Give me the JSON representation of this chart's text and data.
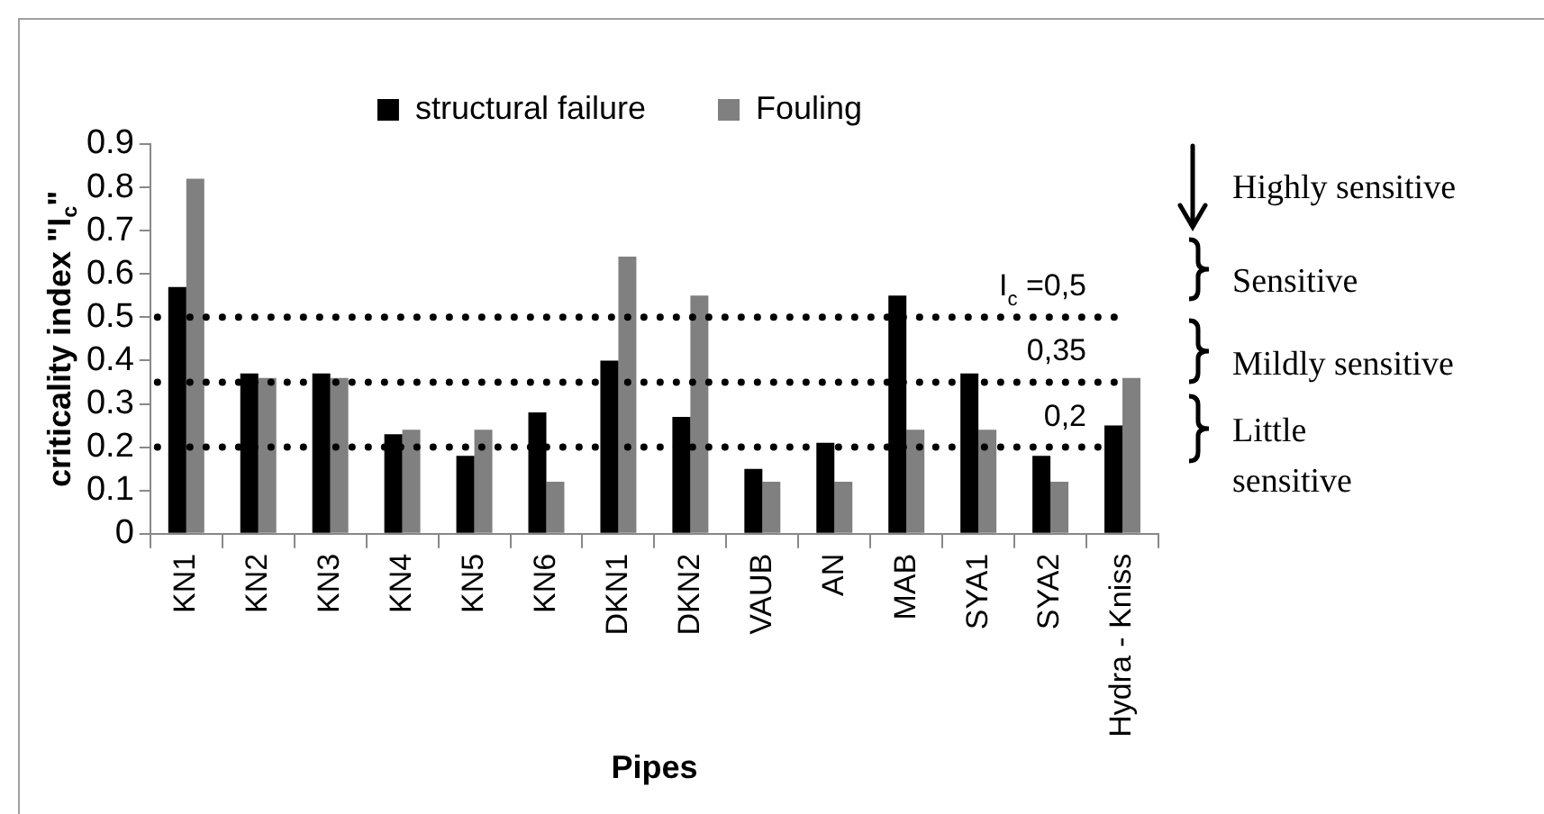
{
  "chart_data": {
    "type": "bar",
    "xlabel": "Pipes",
    "ylabel": "criticality index \"I$_{c}$\"",
    "categories": [
      "KN1",
      "KN2",
      "KN3",
      "KN4",
      "KN5",
      "KN6",
      "DKN1",
      "DKN2",
      "VAUB",
      "AN",
      "MAB",
      "SYA1",
      "SYA2",
      "Hydra - Kniss"
    ],
    "series": [
      {
        "name": "structural failure",
        "color": "#000000",
        "values": [
          0.57,
          0.37,
          0.37,
          0.23,
          0.18,
          0.28,
          0.4,
          0.27,
          0.15,
          0.21,
          0.55,
          0.37,
          0.18,
          0.25
        ]
      },
      {
        "name": "Fouling",
        "color": "#808080",
        "values": [
          0.82,
          0.36,
          0.36,
          0.24,
          0.24,
          0.12,
          0.64,
          0.55,
          0.12,
          0.12,
          0.24,
          0.24,
          0.12,
          0.36
        ]
      }
    ],
    "ylim": [
      0,
      0.9
    ],
    "yticks": [
      0,
      0.1,
      0.2,
      0.3,
      0.4,
      0.5,
      0.6,
      0.7,
      0.8,
      0.9
    ],
    "grid": false,
    "legend": "top",
    "ref_lines": [
      {
        "axis": "y",
        "value": 0.5,
        "label": "I$_{c}$ =0,5",
        "color": "#000000",
        "line_style": "dotted"
      },
      {
        "axis": "y",
        "value": 0.35,
        "label": "0,35",
        "color": "#000000",
        "line_style": "dotted"
      },
      {
        "axis": "y",
        "value": 0.2,
        "label": "0,2",
        "color": "#000000",
        "line_style": "dotted"
      }
    ],
    "annotations": [
      "Highly sensitive",
      "Sensitive",
      "Mildly sensitive",
      "Little sensitive"
    ]
  }
}
